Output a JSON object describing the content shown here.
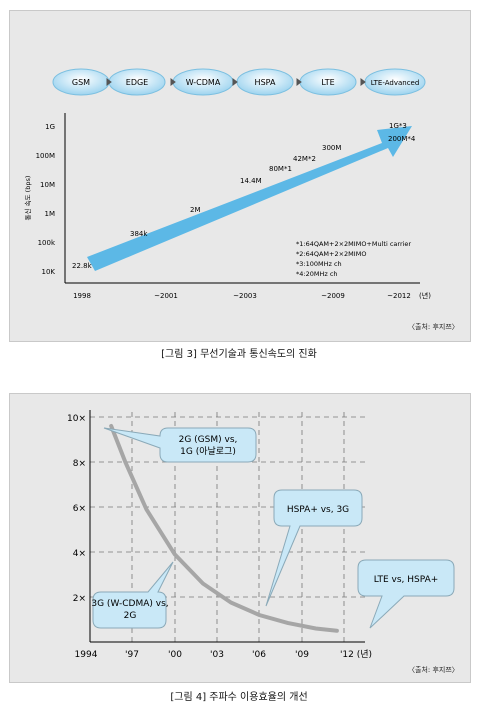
{
  "figure1": {
    "caption": "[그림 3] 무선기술과 통신속도의 진화",
    "source": "〈출처: 후지쯔〉",
    "evolution": [
      "GSM",
      "EDGE",
      "W-CDMA",
      "HSPA",
      "LTE",
      "LTE-Advanced"
    ],
    "notes": [
      "*1:64QAM+2×2MIMO+Multi carrier",
      "*2:64QAM+2×2MIMO",
      "*3:100MHz ch",
      "*4:20MHz ch"
    ]
  },
  "figure2": {
    "caption": "[그림 4] 주파수 이용효율의 개선",
    "source": "〈출처: 후지쯔〉"
  },
  "colors": {
    "panel": "#e8e8e8",
    "arrow": "#5cb8e6",
    "pill": "#9cd3ef",
    "callout": "#c9e8f7",
    "curve": "#a6a6a6"
  },
  "chart_data": [
    {
      "type": "area",
      "ylabel": "통신 속도 (bps)",
      "y_scale": "log",
      "y_ticks": [
        "1G",
        "100M",
        "10M",
        "1M",
        "100k",
        "10K"
      ],
      "x_ticks": [
        "1998",
        "~2001",
        "~2003",
        "~2009",
        "~2012",
        "(년)"
      ],
      "points": [
        {
          "x": "1998",
          "label": "22.8k"
        },
        {
          "x": "1998-2001",
          "label": "384k"
        },
        {
          "x": "~2001",
          "label": "2M"
        },
        {
          "x": "~2003",
          "label": "14.4M"
        },
        {
          "x": "~2003-2009",
          "label": "80M*1"
        },
        {
          "x": "~2003-2009",
          "label": "42M*2"
        },
        {
          "x": "~2009",
          "label": "300M"
        },
        {
          "x": "~2012",
          "label": "1G*3"
        },
        {
          "x": "~2012",
          "label": "200M*4"
        }
      ]
    },
    {
      "type": "line",
      "x_ticks": [
        "1994",
        "'97",
        "'00",
        "'03",
        "'06",
        "'09",
        "'12 (년)"
      ],
      "y_ticks": [
        "10×",
        "8×",
        "6×",
        "4×",
        "2×"
      ],
      "ylim": [
        0,
        10
      ],
      "x": [
        1995.5,
        1996.5,
        1998,
        2000,
        2002,
        2004,
        2006,
        2008,
        2010,
        2011.5
      ],
      "values": [
        9.6,
        8.0,
        5.9,
        3.9,
        2.6,
        1.75,
        1.2,
        0.85,
        0.6,
        0.5
      ],
      "annotations": [
        "2G (GSM) vs, 1G (아날로그)",
        "3G (W-CDMA) vs, 2G",
        "HSPA+ vs, 3G",
        "LTE vs, HSPA+"
      ]
    }
  ]
}
